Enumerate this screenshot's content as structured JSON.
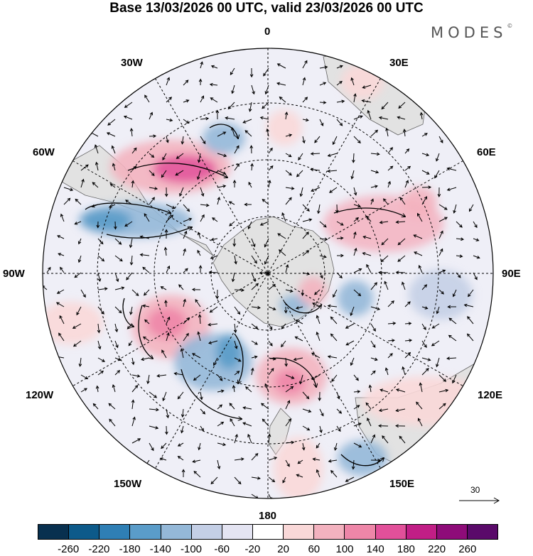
{
  "title": "Base 13/03/2026 00 UTC, valid 23/03/2026 00 UTC",
  "brand": "MODES",
  "brand_mark": "©",
  "longitude_labels": {
    "deg0": "0",
    "deg30e": "30E",
    "deg60e": "60E",
    "deg90e": "90E",
    "deg120e": "120E",
    "deg150e": "150E",
    "deg180": "180",
    "deg150w": "150W",
    "deg120w": "120W",
    "deg90w": "90W",
    "deg60w": "60W",
    "deg30w": "30W"
  },
  "reference_vector": {
    "label": "30"
  },
  "colorbar": {
    "tick_labels": [
      "-260",
      "-220",
      "-180",
      "-140",
      "-100",
      "-60",
      "-20",
      "20",
      "60",
      "100",
      "140",
      "180",
      "220",
      "260"
    ],
    "colors": [
      "#08304f",
      "#0d5a8a",
      "#2f7fb5",
      "#5a9cc9",
      "#94b8d8",
      "#c4cfe6",
      "#e4e4f2",
      "#ffffff",
      "#f9d8d8",
      "#f3b2bf",
      "#ee86a8",
      "#e2509a",
      "#c11e86",
      "#8e0c79",
      "#5a0a6a"
    ]
  }
}
